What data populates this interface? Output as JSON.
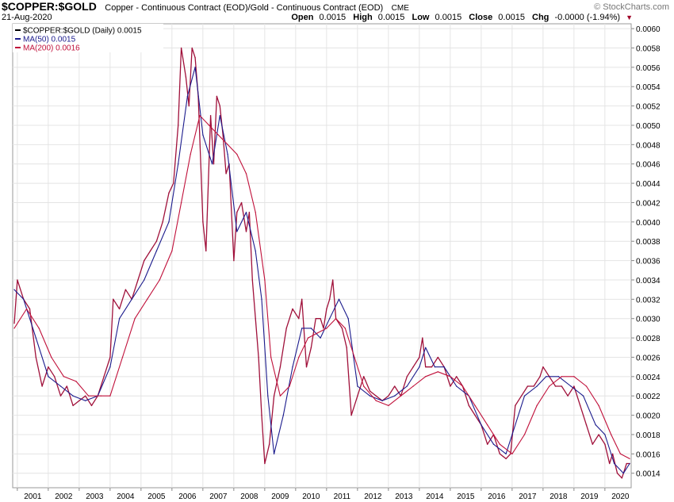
{
  "header": {
    "symbol": "$COPPER:$GOLD",
    "description": "Copper - Continuous Contract (EOD)/Gold - Continuous Contract (EOD)",
    "exchange": "CME",
    "date": "21-Aug-2020",
    "brand": "© StockCharts.com",
    "open_label": "Open",
    "open_value": "0.0015",
    "high_label": "High",
    "high_value": "0.0015",
    "low_label": "Low",
    "low_value": "0.0015",
    "close_label": "Close",
    "close_value": "0.0015",
    "chg_label": "Chg",
    "chg_value": "-0.0000 (-1.94%)",
    "chg_arrow": "▼"
  },
  "legend": [
    {
      "label": "$COPPER:$GOLD (Daily) 0.0015",
      "color": "#000000"
    },
    {
      "label": "MA(50) 0.0015",
      "color": "#1a1a8c"
    },
    {
      "label": "MA(200) 0.0016",
      "color": "#c0103a"
    }
  ],
  "chart_data": {
    "type": "line",
    "title": "$COPPER:$GOLD",
    "xlabel": "",
    "ylabel": "",
    "xlim": [
      2000.85,
      2020.85
    ],
    "ylim": [
      0.00125,
      0.00605
    ],
    "x_ticks": [
      "2001",
      "2002",
      "2003",
      "2004",
      "2005",
      "2006",
      "2007",
      "2008",
      "2009",
      "2010",
      "2011",
      "2012",
      "2013",
      "2014",
      "2015",
      "2016",
      "2017",
      "2018",
      "2019",
      "2020"
    ],
    "y_ticks": [
      "0.0014",
      "0.0016",
      "0.0018",
      "0.0020",
      "0.0022",
      "0.0024",
      "0.0026",
      "0.0028",
      "0.0030",
      "0.0032",
      "0.0034",
      "0.0036",
      "0.0038",
      "0.0040",
      "0.0042",
      "0.0044",
      "0.0046",
      "0.0048",
      "0.0050",
      "0.0052",
      "0.0054",
      "0.0056",
      "0.0058",
      "0.0060"
    ],
    "series": [
      {
        "name": "$COPPER:$GOLD (Daily)",
        "color": "#a0103a",
        "x": [
          2000.9,
          2001.0,
          2001.2,
          2001.4,
          2001.6,
          2001.8,
          2002.0,
          2002.2,
          2002.4,
          2002.6,
          2002.8,
          2003.0,
          2003.2,
          2003.4,
          2003.6,
          2003.8,
          2004.0,
          2004.1,
          2004.3,
          2004.5,
          2004.7,
          2004.9,
          2005.1,
          2005.3,
          2005.5,
          2005.7,
          2005.9,
          2006.05,
          2006.2,
          2006.3,
          2006.45,
          2006.55,
          2006.65,
          2006.75,
          2006.85,
          2007.0,
          2007.1,
          2007.25,
          2007.35,
          2007.45,
          2007.55,
          2007.65,
          2007.75,
          2007.85,
          2008.0,
          2008.1,
          2008.25,
          2008.4,
          2008.5,
          2008.6,
          2008.7,
          2008.8,
          2008.9,
          2009.0,
          2009.15,
          2009.3,
          2009.5,
          2009.7,
          2009.9,
          2010.1,
          2010.2,
          2010.35,
          2010.5,
          2010.65,
          2010.8,
          2010.9,
          2011.0,
          2011.1,
          2011.2,
          2011.3,
          2011.5,
          2011.65,
          2011.8,
          2012.0,
          2012.2,
          2012.4,
          2012.6,
          2012.8,
          2013.0,
          2013.2,
          2013.4,
          2013.6,
          2013.8,
          2014.0,
          2014.1,
          2014.2,
          2014.4,
          2014.6,
          2014.8,
          2015.0,
          2015.2,
          2015.4,
          2015.6,
          2015.8,
          2016.0,
          2016.2,
          2016.4,
          2016.6,
          2016.8,
          2016.95,
          2017.1,
          2017.3,
          2017.5,
          2017.7,
          2017.9,
          2018.0,
          2018.2,
          2018.4,
          2018.6,
          2018.8,
          2019.0,
          2019.2,
          2019.4,
          2019.6,
          2019.8,
          2020.0,
          2020.15,
          2020.25,
          2020.4,
          2020.55,
          2020.7,
          2020.8
        ],
        "y": [
          0.00295,
          0.0034,
          0.0032,
          0.0031,
          0.0026,
          0.0023,
          0.0025,
          0.0024,
          0.0022,
          0.0023,
          0.0021,
          0.00215,
          0.0022,
          0.0021,
          0.0022,
          0.0024,
          0.0026,
          0.0032,
          0.0031,
          0.0033,
          0.0032,
          0.0034,
          0.0036,
          0.0037,
          0.0038,
          0.004,
          0.0043,
          0.0044,
          0.005,
          0.0058,
          0.0055,
          0.0052,
          0.0058,
          0.0057,
          0.0053,
          0.004,
          0.0037,
          0.0051,
          0.0046,
          0.0053,
          0.0052,
          0.0049,
          0.0045,
          0.0046,
          0.0036,
          0.0041,
          0.0042,
          0.0039,
          0.0041,
          0.0034,
          0.003,
          0.0026,
          0.002,
          0.0015,
          0.0017,
          0.0022,
          0.0025,
          0.0029,
          0.0031,
          0.003,
          0.0032,
          0.0025,
          0.0027,
          0.003,
          0.003,
          0.0029,
          0.0031,
          0.0032,
          0.0034,
          0.003,
          0.0029,
          0.0027,
          0.002,
          0.0022,
          0.0024,
          0.00225,
          0.0022,
          0.00215,
          0.0022,
          0.0023,
          0.0022,
          0.0024,
          0.0025,
          0.0026,
          0.0028,
          0.0025,
          0.0025,
          0.0026,
          0.0025,
          0.0023,
          0.0024,
          0.0023,
          0.0021,
          0.002,
          0.0019,
          0.0017,
          0.0018,
          0.0016,
          0.00155,
          0.0016,
          0.0021,
          0.0022,
          0.0023,
          0.0023,
          0.0024,
          0.0025,
          0.0024,
          0.0023,
          0.0023,
          0.0022,
          0.0023,
          0.0021,
          0.0019,
          0.0017,
          0.0018,
          0.0017,
          0.0015,
          0.0016,
          0.0014,
          0.00135,
          0.0015,
          0.0015
        ]
      },
      {
        "name": "MA(50)",
        "color": "#1a1a8c",
        "x": [
          2000.9,
          2001.2,
          2001.6,
          2002.0,
          2002.4,
          2002.8,
          2003.2,
          2003.6,
          2004.0,
          2004.3,
          2004.7,
          2005.1,
          2005.5,
          2005.9,
          2006.2,
          2006.5,
          2006.75,
          2007.0,
          2007.3,
          2007.55,
          2007.8,
          2008.1,
          2008.4,
          2008.7,
          2008.9,
          2009.1,
          2009.3,
          2009.6,
          2009.9,
          2010.2,
          2010.5,
          2010.8,
          2011.1,
          2011.4,
          2011.7,
          2012.0,
          2012.4,
          2012.8,
          2013.2,
          2013.6,
          2014.0,
          2014.2,
          2014.5,
          2014.8,
          2015.2,
          2015.6,
          2016.0,
          2016.4,
          2016.8,
          2017.0,
          2017.4,
          2017.8,
          2018.1,
          2018.5,
          2018.9,
          2019.3,
          2019.7,
          2020.0,
          2020.3,
          2020.6,
          2020.8
        ],
        "y": [
          0.0033,
          0.0032,
          0.0028,
          0.0024,
          0.0023,
          0.0022,
          0.00215,
          0.0022,
          0.0025,
          0.003,
          0.0032,
          0.0034,
          0.0037,
          0.004,
          0.0046,
          0.0053,
          0.0056,
          0.0049,
          0.0046,
          0.0051,
          0.0047,
          0.0039,
          0.0041,
          0.0037,
          0.0032,
          0.0022,
          0.0016,
          0.002,
          0.0025,
          0.0029,
          0.0029,
          0.0028,
          0.003,
          0.0032,
          0.003,
          0.0023,
          0.0022,
          0.00215,
          0.0022,
          0.0023,
          0.0025,
          0.0027,
          0.0025,
          0.0025,
          0.0023,
          0.0022,
          0.0019,
          0.0017,
          0.0016,
          0.0018,
          0.0022,
          0.0023,
          0.0024,
          0.0024,
          0.0023,
          0.0022,
          0.0019,
          0.0018,
          0.0015,
          0.0014,
          0.0015
        ]
      },
      {
        "name": "MA(200)",
        "color": "#c0103a",
        "x": [
          2000.9,
          2001.3,
          2001.7,
          2002.1,
          2002.5,
          2002.9,
          2003.3,
          2003.7,
          2004.0,
          2004.4,
          2004.8,
          2005.2,
          2005.6,
          2006.0,
          2006.3,
          2006.6,
          2006.9,
          2007.2,
          2007.5,
          2007.8,
          2008.1,
          2008.4,
          2008.7,
          2009.0,
          2009.2,
          2009.5,
          2009.8,
          2010.1,
          2010.4,
          2010.7,
          2011.0,
          2011.3,
          2011.6,
          2011.9,
          2012.2,
          2012.6,
          2013.0,
          2013.4,
          2013.8,
          2014.2,
          2014.6,
          2015.0,
          2015.4,
          2015.8,
          2016.2,
          2016.6,
          2017.0,
          2017.4,
          2017.8,
          2018.2,
          2018.6,
          2019.0,
          2019.4,
          2019.8,
          2020.2,
          2020.5,
          2020.8
        ],
        "y": [
          0.0029,
          0.0031,
          0.0029,
          0.0026,
          0.0024,
          0.00235,
          0.0022,
          0.0022,
          0.0022,
          0.0026,
          0.003,
          0.0032,
          0.0034,
          0.0037,
          0.0042,
          0.0047,
          0.0051,
          0.005,
          0.0049,
          0.0048,
          0.0047,
          0.0045,
          0.0041,
          0.0034,
          0.0026,
          0.0022,
          0.0023,
          0.0026,
          0.0028,
          0.00285,
          0.0029,
          0.003,
          0.0029,
          0.0026,
          0.0023,
          0.00215,
          0.0021,
          0.0022,
          0.0023,
          0.0024,
          0.00245,
          0.0024,
          0.0023,
          0.0021,
          0.0019,
          0.0017,
          0.0016,
          0.0018,
          0.0021,
          0.0023,
          0.0024,
          0.0024,
          0.0023,
          0.0021,
          0.0018,
          0.0016,
          0.00155
        ]
      }
    ]
  }
}
